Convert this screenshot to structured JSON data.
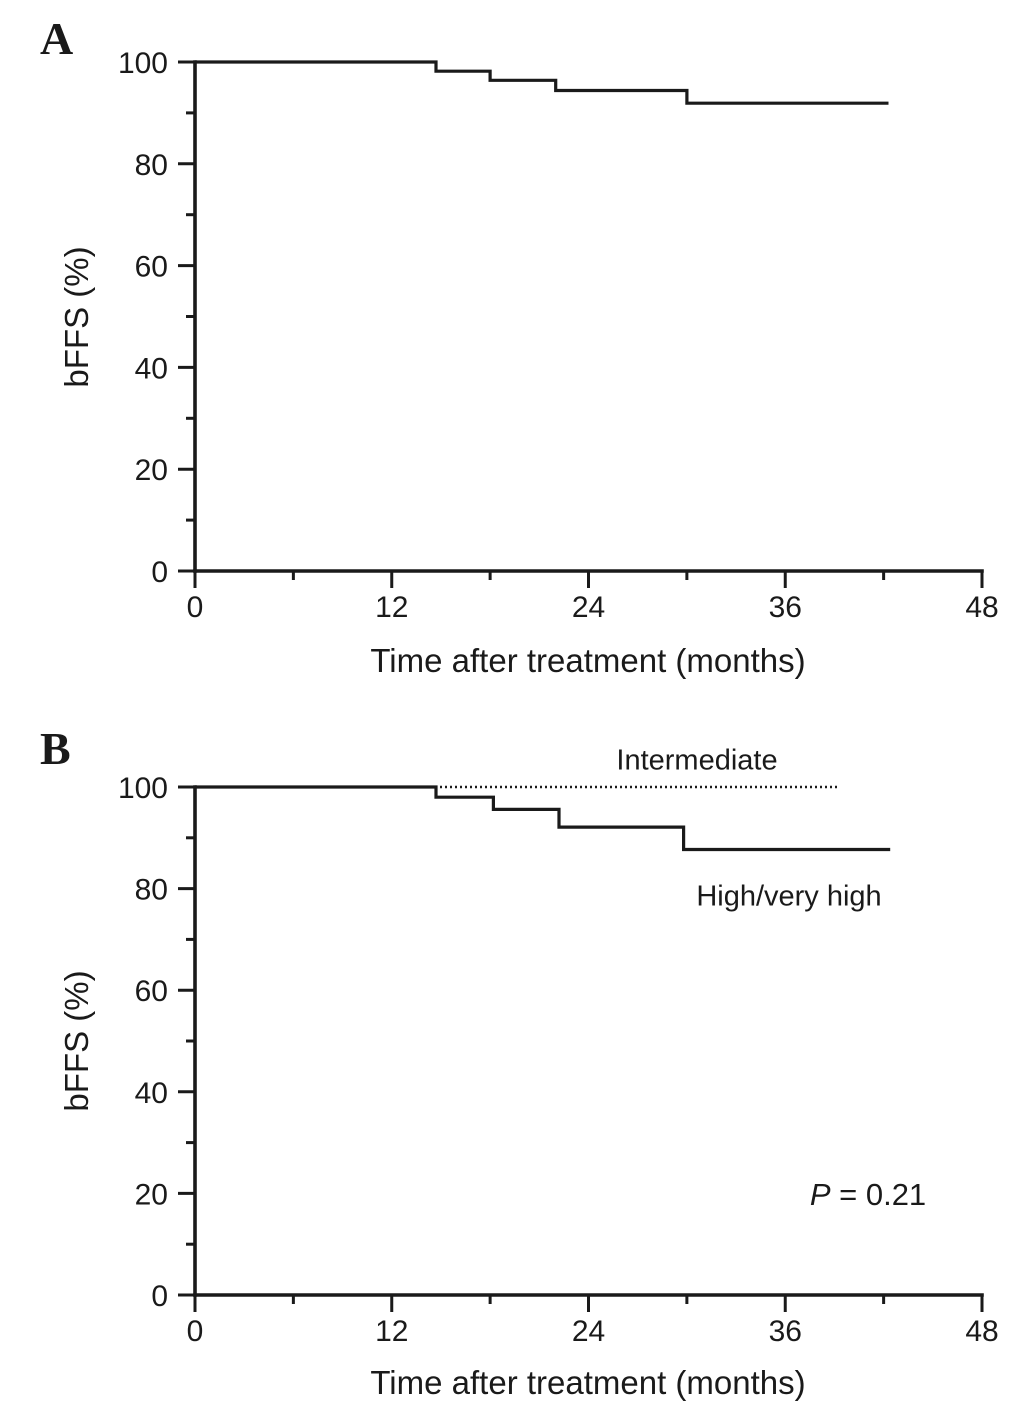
{
  "colors": {
    "line": "#1a1a1a",
    "background": "#ffffff"
  },
  "chart_data": [
    {
      "type": "line",
      "subtype": "kaplan-meier-step-curve",
      "panel": "A",
      "title": "",
      "xlabel": "Time after treatment (months)",
      "ylabel": "bFFS (%)",
      "xlim": [
        0,
        48
      ],
      "ylim": [
        0,
        100
      ],
      "xticks_major": [
        0,
        12,
        24,
        36,
        48
      ],
      "xticks_minor": [
        6,
        18,
        30,
        42
      ],
      "yticks_major": [
        0,
        20,
        40,
        60,
        80,
        100
      ],
      "yticks_minor": [
        10,
        30,
        50,
        70,
        90
      ],
      "grid": false,
      "color": "#1a1a1a",
      "series": [
        {
          "style": "solid",
          "steps": [
            [
              0,
              100
            ],
            [
              14.7,
              98.2
            ],
            [
              18,
              96.4
            ],
            [
              22,
              94.4
            ],
            [
              30,
              91.9
            ]
          ],
          "end_x": 42.3
        }
      ],
      "annotations": []
    },
    {
      "type": "line",
      "subtype": "kaplan-meier-step-curve",
      "panel": "B",
      "title": "",
      "xlabel": "Time after treatment (months)",
      "ylabel": "bFFS (%)",
      "xlim": [
        0,
        48
      ],
      "ylim": [
        0,
        100
      ],
      "xticks_major": [
        0,
        12,
        24,
        36,
        48
      ],
      "xticks_minor": [
        6,
        18,
        30,
        42
      ],
      "yticks_major": [
        0,
        20,
        40,
        60,
        80,
        100
      ],
      "yticks_minor": [
        10,
        30,
        50,
        70,
        90
      ],
      "grid": false,
      "color": "#1a1a1a",
      "series": [
        {
          "name": "High/very high",
          "style": "solid",
          "steps": [
            [
              0,
              100
            ],
            [
              14.7,
              98.0
            ],
            [
              18.2,
              95.6
            ],
            [
              22.2,
              92.1
            ],
            [
              29.8,
              87.7
            ]
          ],
          "end_x": 42.4
        },
        {
          "name": "Intermediate",
          "style": "dotted",
          "steps": [
            [
              0,
              100
            ]
          ],
          "end_x": 39.2
        }
      ],
      "annotations": [
        {
          "text": "Intermediate"
        },
        {
          "text": "High/very high"
        },
        {
          "text": "P = 0.21",
          "symbol": "P",
          "rest": " = 0.21"
        }
      ]
    }
  ]
}
